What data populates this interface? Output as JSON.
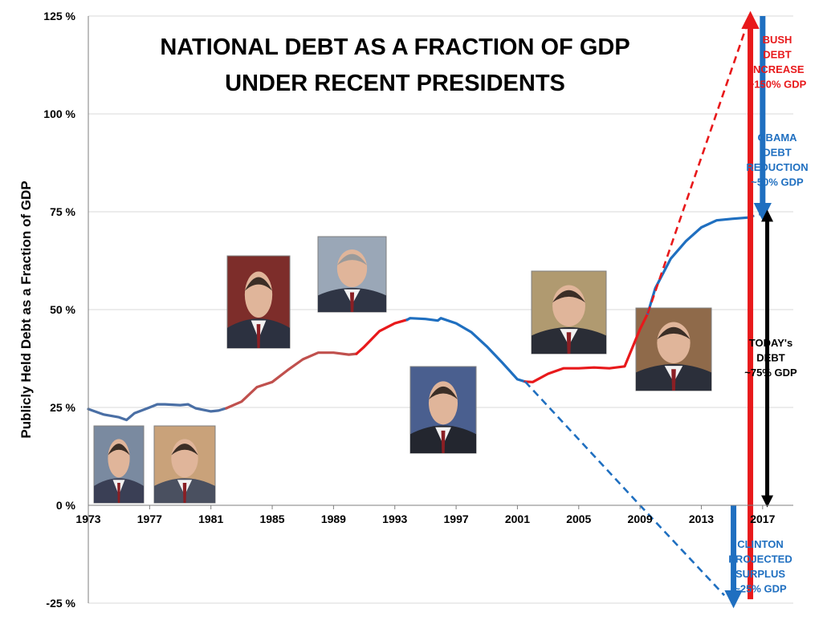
{
  "chart_data": {
    "type": "line",
    "title_lines": [
      "NATIONAL DEBT AS A FRACTION OF GDP",
      "UNDER RECENT PRESIDENTS"
    ],
    "ylabel": "Publicly Held Debt as a Fraction of GDP",
    "xlabel": "",
    "xlim": [
      1973,
      2019
    ],
    "ylim": [
      -25,
      125
    ],
    "x_ticks": [
      1973,
      1977,
      1981,
      1985,
      1989,
      1993,
      1997,
      2001,
      2005,
      2009,
      2013,
      2017
    ],
    "y_ticks": [
      {
        "value": 125,
        "label": "125 %"
      },
      {
        "value": 100,
        "label": "100 %"
      },
      {
        "value": 75,
        "label": "75 %"
      },
      {
        "value": 50,
        "label": "50 %"
      },
      {
        "value": 25,
        "label": "25 %"
      },
      {
        "value": 0,
        "label": "0 %"
      },
      {
        "value": -25,
        "label": "-25 %"
      }
    ],
    "grid": true,
    "colors": {
      "republican": "#e8191b",
      "democrat": "#1f6fc0",
      "early": "#4a6fa5",
      "arrow_black": "#000000"
    },
    "series": [
      {
        "color": "#4a6fa5",
        "style": "solid",
        "points": [
          [
            1973,
            24.6
          ],
          [
            1974,
            23.2
          ],
          [
            1975,
            22.5
          ],
          [
            1975.5,
            21.8
          ],
          [
            1976,
            23.5
          ],
          [
            1977,
            25.0
          ],
          [
            1977.5,
            25.8
          ],
          [
            1978,
            25.8
          ],
          [
            1979,
            25.6
          ],
          [
            1979.5,
            25.8
          ],
          [
            1980,
            24.8
          ],
          [
            1981,
            24.0
          ],
          [
            1981.5,
            24.2
          ],
          [
            1982,
            24.8
          ]
        ]
      },
      {
        "color": "#c0504d",
        "style": "solid",
        "points": [
          [
            1982,
            24.8
          ],
          [
            1983,
            26.5
          ],
          [
            1984,
            30.2
          ],
          [
            1985,
            31.5
          ],
          [
            1986,
            34.5
          ],
          [
            1987,
            37.3
          ],
          [
            1988,
            39.0
          ],
          [
            1989,
            39.0
          ],
          [
            1990,
            38.5
          ],
          [
            1990.5,
            38.7
          ]
        ]
      },
      {
        "color": "#e8191b",
        "style": "solid",
        "points": [
          [
            1990.5,
            38.7
          ],
          [
            1991,
            40.5
          ],
          [
            1992,
            44.5
          ],
          [
            1993,
            46.5
          ],
          [
            1993.8,
            47.4
          ]
        ]
      },
      {
        "color": "#1f6fc0",
        "style": "solid",
        "points": [
          [
            1993.8,
            47.4
          ],
          [
            1994,
            47.8
          ],
          [
            1995,
            47.6
          ],
          [
            1995.8,
            47.2
          ],
          [
            1996,
            47.8
          ],
          [
            1997,
            46.5
          ],
          [
            1998,
            44.2
          ],
          [
            1999,
            40.6
          ],
          [
            2000,
            36.5
          ],
          [
            2001,
            32.2
          ],
          [
            2001.5,
            31.6
          ]
        ]
      },
      {
        "color": "#e8191b",
        "style": "solid",
        "points": [
          [
            2001.5,
            31.6
          ],
          [
            2002,
            31.5
          ],
          [
            2003,
            33.6
          ],
          [
            2004,
            35.0
          ],
          [
            2005,
            35.0
          ],
          [
            2006,
            35.2
          ],
          [
            2007,
            35.0
          ],
          [
            2008,
            35.5
          ],
          [
            2009,
            45.0
          ],
          [
            2009.5,
            49.0
          ]
        ]
      },
      {
        "color": "#1f6fc0",
        "style": "solid",
        "points": [
          [
            2009.5,
            49.0
          ],
          [
            2010,
            55.5
          ],
          [
            2011,
            63.0
          ],
          [
            2012,
            67.5
          ],
          [
            2013,
            71.0
          ],
          [
            2014,
            72.8
          ],
          [
            2015,
            73.2
          ],
          [
            2016,
            73.5
          ]
        ]
      },
      {
        "color": "#4a6fa5",
        "style": "dashed",
        "points": [
          [
            2016,
            73.5
          ],
          [
            2017,
            74.5
          ],
          [
            2017.5,
            74.8
          ]
        ]
      },
      {
        "color": "#1f6fc0",
        "style": "dashed",
        "points": [
          [
            2001.5,
            31.6
          ],
          [
            2009,
            0
          ],
          [
            2014.5,
            -23.0
          ]
        ]
      },
      {
        "color": "#e8191b",
        "style": "dashed",
        "points": [
          [
            2009.5,
            49.0
          ],
          [
            2016,
            123.0
          ]
        ]
      }
    ],
    "arrows": [
      {
        "color": "#e8191b",
        "x": 2016.2,
        "from": -24,
        "to": 124
      },
      {
        "color": "#1f6fc0",
        "x": 2017.0,
        "from": 125,
        "to": 75
      },
      {
        "color": "#000000",
        "x": 2017.3,
        "from": 74,
        "to": 1,
        "double": true
      },
      {
        "color": "#1f6fc0",
        "x": 2015.1,
        "from": 0,
        "to": -24
      }
    ],
    "annotations": [
      {
        "lines": [
          "BUSH",
          "DEBT",
          "INCREASE",
          "~150% GDP"
        ],
        "color": "#e8191b"
      },
      {
        "lines": [
          "OBAMA",
          "DEBT",
          "REDUCTION",
          "~50% GDP"
        ],
        "color": "#1f6fc0"
      },
      {
        "lines": [
          "TODAY's",
          "DEBT",
          "~75% GDP"
        ],
        "color": "#000000"
      },
      {
        "lines": [
          "CLINTON",
          "PROJECTED",
          "SURPLUS",
          "~25% GDP"
        ],
        "color": "#1f6fc0"
      }
    ],
    "photos": [
      {
        "name": "nixon-photo"
      },
      {
        "name": "carter-photo"
      },
      {
        "name": "reagan-photo"
      },
      {
        "name": "bush-sr-photo"
      },
      {
        "name": "clinton-photo"
      },
      {
        "name": "bush-jr-photo"
      },
      {
        "name": "obama-photo"
      }
    ]
  }
}
